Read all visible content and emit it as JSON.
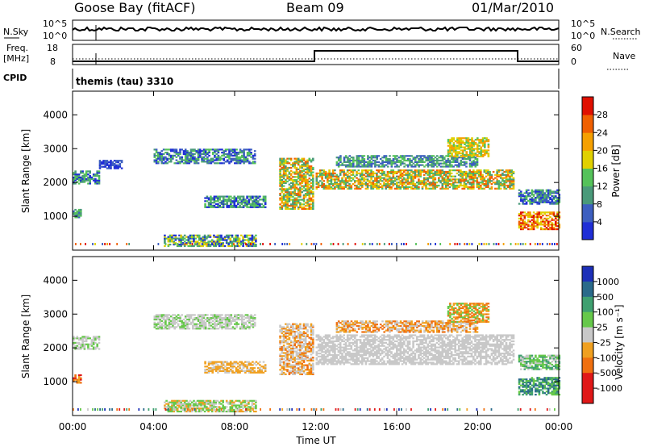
{
  "header": {
    "station": "Goose Bay (fitACF)",
    "beam": "Beam 09",
    "date": "01/Mar/2010"
  },
  "top_panels": {
    "nsky_label": "N.Sky",
    "nsky_tick_hi": "10^5",
    "nsky_tick_lo": "10^0",
    "nsearch_label": "N.Search",
    "nsearch_tick_hi": "10^5",
    "nsearch_tick_lo": "10^0",
    "freq_label_1": "Freq.",
    "freq_label_2": "[MHz]",
    "freq_tick_hi": "18",
    "freq_tick_lo": "8",
    "nave_label": "Nave",
    "nave_tick_hi": "60",
    "nave_tick_lo": "0",
    "cpid_label": "CPID",
    "cpid_text": "themis (tau) 3310"
  },
  "time_axis": {
    "label": "Time UT",
    "ticks": [
      "00:00",
      "04:00",
      "08:00",
      "12:00",
      "16:00",
      "20:00",
      "00:00"
    ]
  },
  "colors": {
    "power_scale": [
      "#1f2ed6",
      "#3d5fc0",
      "#4a9a7a",
      "#55c25a",
      "#e0d000",
      "#f5a000",
      "#f06000",
      "#e01000"
    ],
    "velocity_scale": [
      "#1c2fb8",
      "#2a6a8a",
      "#3fa070",
      "#66c84a",
      "#c8c8c8",
      "#f0a020",
      "#f07010",
      "#e01818"
    ]
  },
  "chart_data": [
    {
      "type": "heatmap",
      "name": "power",
      "ylabel": "Slant Range [km]",
      "yticks": [
        "1000",
        "2000",
        "3000",
        "4000"
      ],
      "ylim": [
        0,
        4700
      ],
      "xlim": [
        0,
        24
      ],
      "colorbar_label": "Power [dB]",
      "colorbar_ticks": [
        "4",
        "8",
        "12",
        "16",
        "20",
        "24",
        "28"
      ],
      "patches": [
        {
          "t0": 0.0,
          "t1": 1.3,
          "r0": 1950,
          "r1": 2350,
          "ci": [
            0,
            2,
            3
          ]
        },
        {
          "t0": 1.3,
          "t1": 2.4,
          "r0": 2400,
          "r1": 2650,
          "ci": [
            0,
            1
          ]
        },
        {
          "t0": 0.0,
          "t1": 0.4,
          "r0": 950,
          "r1": 1200,
          "ci": [
            1,
            2,
            3
          ]
        },
        {
          "t0": 4.0,
          "t1": 9.0,
          "r0": 2550,
          "r1": 3000,
          "ci": [
            0,
            1,
            2,
            3
          ]
        },
        {
          "t0": 4.5,
          "t1": 9.0,
          "r0": 100,
          "r1": 450,
          "ci": [
            0,
            2,
            3,
            4
          ]
        },
        {
          "t0": 6.5,
          "t1": 9.5,
          "r0": 1250,
          "r1": 1600,
          "ci": [
            0,
            2,
            3
          ]
        },
        {
          "t0": 10.2,
          "t1": 11.9,
          "r0": 1200,
          "r1": 2700,
          "ci": [
            2,
            3,
            4,
            5,
            6
          ]
        },
        {
          "t0": 12.0,
          "t1": 21.8,
          "r0": 1800,
          "r1": 2350,
          "ci": [
            2,
            3,
            4,
            5,
            6
          ]
        },
        {
          "t0": 13.0,
          "t1": 20.0,
          "r0": 2450,
          "r1": 2800,
          "ci": [
            1,
            2,
            3
          ]
        },
        {
          "t0": 18.5,
          "t1": 20.5,
          "r0": 2750,
          "r1": 3300,
          "ci": [
            3,
            4,
            5
          ]
        },
        {
          "t0": 22.0,
          "t1": 24.0,
          "r0": 1350,
          "r1": 1800,
          "ci": [
            0,
            1,
            2,
            3
          ]
        },
        {
          "t0": 22.0,
          "t1": 24.0,
          "r0": 600,
          "r1": 1100,
          "ci": [
            4,
            5,
            6,
            7
          ]
        }
      ]
    },
    {
      "type": "heatmap",
      "name": "velocity",
      "ylabel": "Slant Range [km]",
      "yticks": [
        "1000",
        "2000",
        "3000",
        "4000"
      ],
      "ylim": [
        0,
        4700
      ],
      "xlim": [
        0,
        24
      ],
      "colorbar_label": "Velocity [m s⁻¹]",
      "colorbar_ticks": [
        "1000",
        "500",
        "100",
        "25",
        "-25",
        "-100",
        "-500",
        "-1000"
      ],
      "patches": [
        {
          "t0": 0.0,
          "t1": 1.3,
          "r0": 1950,
          "r1": 2350,
          "ci": [
            4,
            4,
            3
          ]
        },
        {
          "t0": 0.0,
          "t1": 0.4,
          "r0": 950,
          "r1": 1200,
          "ci": [
            5,
            6,
            7
          ]
        },
        {
          "t0": 4.0,
          "t1": 9.0,
          "r0": 2550,
          "r1": 3000,
          "ci": [
            4,
            4,
            3
          ]
        },
        {
          "t0": 4.5,
          "t1": 9.0,
          "r0": 100,
          "r1": 450,
          "ci": [
            4,
            3,
            3,
            5
          ]
        },
        {
          "t0": 6.5,
          "t1": 9.5,
          "r0": 1250,
          "r1": 1600,
          "ci": [
            4,
            5,
            5
          ]
        },
        {
          "t0": 10.2,
          "t1": 11.9,
          "r0": 1200,
          "r1": 2700,
          "ci": [
            4,
            4,
            5,
            6
          ]
        },
        {
          "t0": 12.0,
          "t1": 21.8,
          "r0": 1500,
          "r1": 2400,
          "ci": [
            4,
            4,
            4,
            4
          ]
        },
        {
          "t0": 13.0,
          "t1": 20.0,
          "r0": 2450,
          "r1": 2800,
          "ci": [
            4,
            5,
            6
          ]
        },
        {
          "t0": 18.5,
          "t1": 20.5,
          "r0": 2750,
          "r1": 3300,
          "ci": [
            5,
            6,
            3
          ]
        },
        {
          "t0": 22.0,
          "t1": 24.0,
          "r0": 1350,
          "r1": 1800,
          "ci": [
            4,
            3,
            2
          ]
        },
        {
          "t0": 22.0,
          "t1": 24.0,
          "r0": 600,
          "r1": 1100,
          "ci": [
            2,
            3,
            1
          ]
        }
      ]
    }
  ]
}
